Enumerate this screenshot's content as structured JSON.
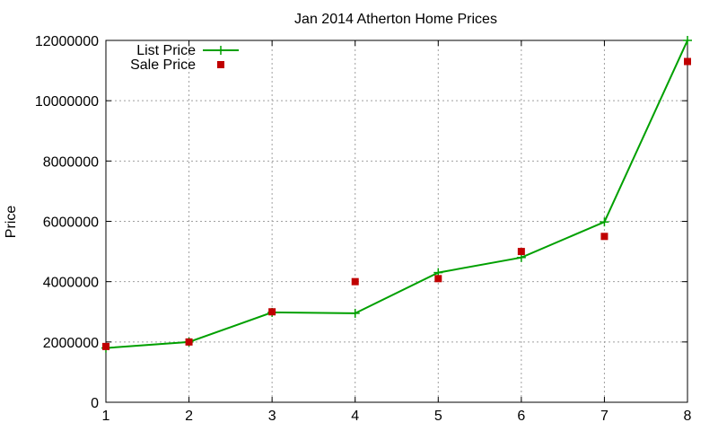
{
  "chart_data": {
    "type": "line",
    "title": "Jan 2014 Atherton Home Prices",
    "xlabel": "",
    "ylabel": "Price",
    "x": [
      1,
      2,
      3,
      4,
      5,
      6,
      7,
      8
    ],
    "xlim": [
      1,
      8
    ],
    "ylim": [
      0,
      12000000
    ],
    "xticks": [
      "1",
      "2",
      "3",
      "4",
      "5",
      "6",
      "7",
      "8"
    ],
    "yticks": [
      "0",
      "2000000",
      "4000000",
      "6000000",
      "8000000",
      "10000000",
      "12000000"
    ],
    "grid": true,
    "legend_position": "top-left",
    "series": [
      {
        "name": "List Price",
        "style": "line-plus",
        "color": "#00a000",
        "values": [
          1800000,
          2000000,
          2980000,
          2950000,
          4300000,
          4800000,
          5980000,
          12000000
        ]
      },
      {
        "name": "Sale Price",
        "style": "square-points",
        "color": "#c00000",
        "values": [
          1850000,
          2000000,
          3000000,
          4000000,
          4100000,
          5000000,
          5500000,
          11300000
        ]
      }
    ]
  }
}
